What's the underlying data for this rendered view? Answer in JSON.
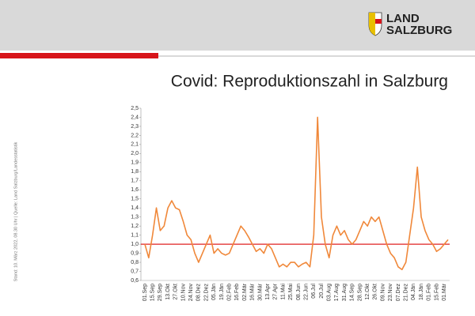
{
  "header": {
    "logo_line1": "LAND",
    "logo_line2": "SALZBURG"
  },
  "side_note": "Stand: 10. März 2022, 08.30 Uhr | Quelle: Land Salzburg/Landesstatistik",
  "chart_data": {
    "type": "line",
    "title": "Covid: Reproduktionszahl in Salzburg",
    "categories": [
      "01.Sep",
      null,
      "15.Sep",
      null,
      "29.Sep",
      null,
      "13.Okt",
      null,
      "27.Okt",
      null,
      "10.Nov",
      null,
      "24.Nov",
      null,
      "08.Dez",
      null,
      "22.Dez",
      null,
      "05.Jän",
      null,
      "19.Jän",
      null,
      "02.Feb",
      null,
      "16.Feb",
      null,
      "02.Mär",
      null,
      "16.Mär",
      null,
      "30.Mär",
      null,
      "13.Apr",
      null,
      "27.Apr",
      null,
      "11.Mai",
      null,
      "25.Mai",
      null,
      "08.Jun",
      null,
      "22.Jun",
      null,
      "06.Jul",
      null,
      "20.Jul",
      null,
      "03.Aug",
      null,
      "17.Aug",
      null,
      "31.Aug",
      null,
      "14.Sep",
      null,
      "28.Sep",
      null,
      "12.Okt",
      null,
      "26.Okt",
      null,
      "09.Nov",
      null,
      "23.Nov",
      null,
      "07.Dez",
      null,
      "21.Dez",
      null,
      "04.Jän",
      null,
      "18.Jän",
      null,
      "01.Feb",
      null,
      "15.Feb",
      null,
      "01.Mär",
      null
    ],
    "series": [
      {
        "name": "Reproduktionszahl",
        "color": "#f0883a",
        "values": [
          1.0,
          0.85,
          1.1,
          1.4,
          1.15,
          1.2,
          1.4,
          1.48,
          1.4,
          1.38,
          1.25,
          1.1,
          1.05,
          0.9,
          0.8,
          0.9,
          1.0,
          1.1,
          0.9,
          0.95,
          0.9,
          0.88,
          0.9,
          1.0,
          1.1,
          1.2,
          1.15,
          1.08,
          1.0,
          0.92,
          0.95,
          0.9,
          1.0,
          0.95,
          0.85,
          0.75,
          0.78,
          0.75,
          0.8,
          0.8,
          0.75,
          0.78,
          0.8,
          0.75,
          1.1,
          2.4,
          1.3,
          1.0,
          0.85,
          1.1,
          1.2,
          1.1,
          1.15,
          1.05,
          1.0,
          1.05,
          1.15,
          1.25,
          1.2,
          1.3,
          1.25,
          1.3,
          1.15,
          1.0,
          0.9,
          0.85,
          0.75,
          0.72,
          0.8,
          1.1,
          1.4,
          1.85,
          1.3,
          1.15,
          1.05,
          1.0,
          0.92,
          0.95,
          1.0,
          1.05
        ]
      }
    ],
    "reference_line": {
      "value": 1.0,
      "color": "#e02020"
    },
    "ylim": [
      0.6,
      2.5
    ],
    "yticks": [
      {
        "value": 0.6,
        "label": "0,6"
      },
      {
        "value": 0.7,
        "label": "0,7"
      },
      {
        "value": 0.8,
        "label": "0,8"
      },
      {
        "value": 0.9,
        "label": "0,9"
      },
      {
        "value": 1.0,
        "label": "1,0"
      },
      {
        "value": 1.1,
        "label": "1,1"
      },
      {
        "value": 1.2,
        "label": "1,2"
      },
      {
        "value": 1.3,
        "label": "1,3"
      },
      {
        "value": 1.4,
        "label": "1,4"
      },
      {
        "value": 1.5,
        "label": "1,5"
      },
      {
        "value": 1.6,
        "label": "1,6"
      },
      {
        "value": 1.7,
        "label": "1,7"
      },
      {
        "value": 1.8,
        "label": "1,8"
      },
      {
        "value": 1.9,
        "label": "1,9"
      },
      {
        "value": 2.0,
        "label": "2,0"
      },
      {
        "value": 2.1,
        "label": "2,1"
      },
      {
        "value": 2.2,
        "label": "2,2"
      },
      {
        "value": 2.3,
        "label": "2,3"
      },
      {
        "value": 2.4,
        "label": "2,4"
      },
      {
        "value": 2.5,
        "label": "2,5"
      }
    ],
    "grid": false
  }
}
